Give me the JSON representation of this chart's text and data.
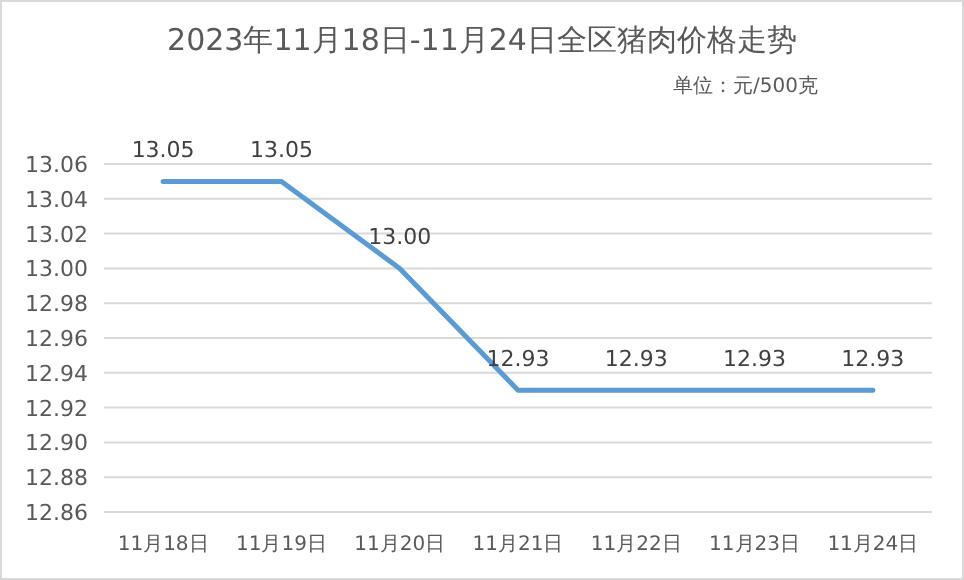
{
  "chart_data": {
    "type": "line",
    "title": "2023年11月18日-11月24日全区猪肉价格走势",
    "subtitle": "单位：元/500克",
    "categories": [
      "11月18日",
      "11月19日",
      "11月20日",
      "11月21日",
      "11月22日",
      "11月23日",
      "11月24日"
    ],
    "series": [
      {
        "color": "#5b9bd5",
        "values": [
          13.05,
          13.05,
          13.0,
          12.93,
          12.93,
          12.93,
          12.93
        ]
      }
    ],
    "ylim": [
      12.86,
      13.06
    ],
    "yticks": [
      {
        "value": 12.86,
        "label": "12.86"
      },
      {
        "value": 12.88,
        "label": "12.88"
      },
      {
        "value": 12.9,
        "label": "12.90"
      },
      {
        "value": 12.92,
        "label": "12.92"
      },
      {
        "value": 12.94,
        "label": "12.94"
      },
      {
        "value": 12.96,
        "label": "12.96"
      },
      {
        "value": 12.98,
        "label": "12.98"
      },
      {
        "value": 13.0,
        "label": "13.00"
      },
      {
        "value": 13.02,
        "label": "13.02"
      },
      {
        "value": 13.04,
        "label": "13.04"
      },
      {
        "value": 13.06,
        "label": "13.06"
      }
    ],
    "value_labels": [
      "13.05",
      "13.05",
      "13.00",
      "12.93",
      "12.93",
      "12.93",
      "12.93"
    ],
    "grid": "y",
    "marker": "none",
    "line_style": "solid"
  }
}
